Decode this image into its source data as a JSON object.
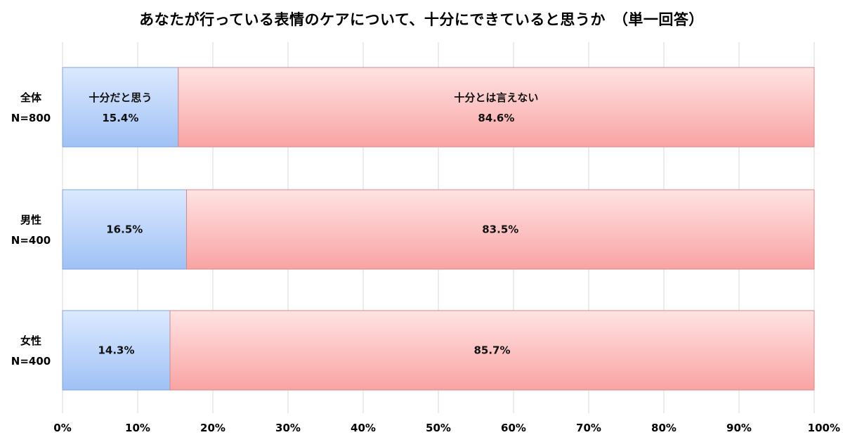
{
  "chart_data": {
    "type": "bar",
    "orientation": "horizontal",
    "stacked": true,
    "title": "あなたが行っている表情のケアについて、十分にできていると思うか　（単一回答）",
    "categories": [
      {
        "line1": "全体",
        "line2": "N=800"
      },
      {
        "line1": "男性",
        "line2": "N=400"
      },
      {
        "line1": "女性",
        "line2": "N=400"
      }
    ],
    "series": [
      {
        "name": "十分だと思う",
        "values": [
          15.4,
          16.5,
          14.3
        ],
        "color_light": "#dce9ff",
        "color_dark": "#9fc1f5",
        "border": "#7fa3d8"
      },
      {
        "name": "十分とは言えない",
        "values": [
          84.6,
          83.5,
          85.7
        ],
        "color_light": "#ffe3e3",
        "color_dark": "#f9a3a3",
        "border": "#d48a8a"
      }
    ],
    "legend_inline_on_row": 0,
    "value_suffix": "%",
    "xlim": [
      0,
      100
    ],
    "xticks": [
      "0%",
      "10%",
      "20%",
      "30%",
      "40%",
      "50%",
      "60%",
      "70%",
      "80%",
      "90%",
      "100%"
    ],
    "grid": true,
    "gridline_color": "#d9d9d9"
  }
}
